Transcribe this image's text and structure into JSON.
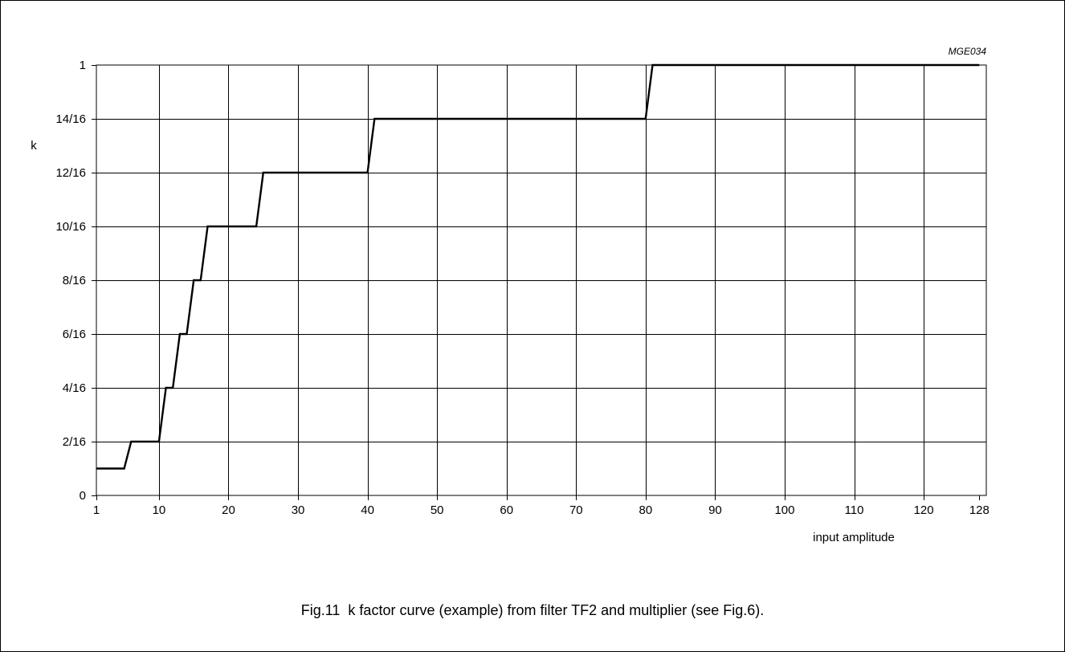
{
  "figure_code": "MGE034",
  "caption": "Fig.11  k factor curve (example) from filter TF2 and multiplier (see Fig.6).",
  "chart_data": {
    "type": "line",
    "title": "",
    "xlabel": "input amplitude",
    "ylabel": "k",
    "xlim": [
      0,
      128
    ],
    "ylim": [
      0,
      1
    ],
    "grid": true,
    "x_ticks": [
      {
        "label": "1",
        "value": 1
      },
      {
        "label": "10",
        "value": 10
      },
      {
        "label": "20",
        "value": 20
      },
      {
        "label": "30",
        "value": 30
      },
      {
        "label": "40",
        "value": 40
      },
      {
        "label": "50",
        "value": 50
      },
      {
        "label": "60",
        "value": 60
      },
      {
        "label": "70",
        "value": 70
      },
      {
        "label": "80",
        "value": 80
      },
      {
        "label": "90",
        "value": 90
      },
      {
        "label": "100",
        "value": 100
      },
      {
        "label": "110",
        "value": 110
      },
      {
        "label": "120",
        "value": 120
      },
      {
        "label": "128",
        "value": 128
      }
    ],
    "y_ticks": [
      {
        "label": "0",
        "value": 0
      },
      {
        "label": "2/16",
        "value": 0.125
      },
      {
        "label": "4/16",
        "value": 0.25
      },
      {
        "label": "6/16",
        "value": 0.375
      },
      {
        "label": "8/16",
        "value": 0.5
      },
      {
        "label": "10/16",
        "value": 0.625
      },
      {
        "label": "12/16",
        "value": 0.75
      },
      {
        "label": "14/16",
        "value": 0.875
      },
      {
        "label": "1",
        "value": 1
      }
    ],
    "series": [
      {
        "x": [
          1,
          5,
          6,
          10,
          11,
          12,
          13,
          14,
          15,
          16,
          17,
          24,
          25,
          40,
          41,
          80,
          81,
          128
        ],
        "y": [
          0.0625,
          0.0625,
          0.125,
          0.125,
          0.25,
          0.25,
          0.375,
          0.375,
          0.5,
          0.5,
          0.625,
          0.625,
          0.75,
          0.75,
          0.875,
          0.875,
          1,
          1
        ]
      }
    ]
  }
}
